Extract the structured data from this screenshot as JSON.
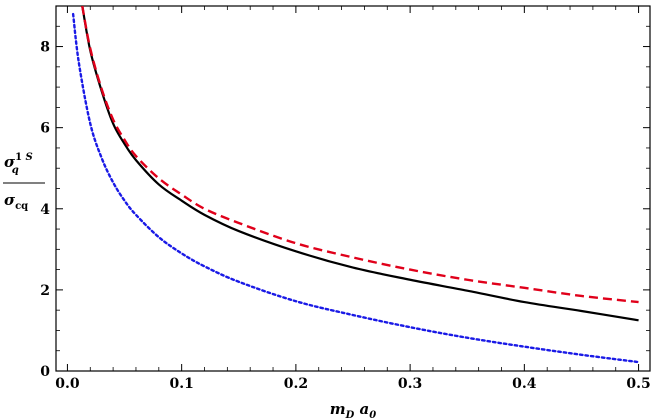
{
  "chart_data": {
    "type": "line",
    "xlabel": "m_D a_0",
    "ylabel_numerator": "σ_q^{1S}",
    "ylabel_denominator": "σ_cq",
    "xlim": [
      -0.01,
      0.51
    ],
    "ylim": [
      0,
      9
    ],
    "x_ticks": [
      "0.0",
      "0.1",
      "0.2",
      "0.3",
      "0.4",
      "0.5"
    ],
    "y_ticks": [
      "0",
      "2",
      "4",
      "6",
      "8"
    ],
    "x_tick_values": [
      0,
      0.1,
      0.2,
      0.3,
      0.4,
      0.5
    ],
    "y_tick_values": [
      0,
      2,
      4,
      6,
      8
    ],
    "grid": false,
    "legend": "none",
    "series": [
      {
        "style": "solid",
        "color": "#000000",
        "x": [
          0.013,
          0.02,
          0.03,
          0.04,
          0.05,
          0.06,
          0.08,
          0.1,
          0.12,
          0.15,
          0.2,
          0.25,
          0.3,
          0.35,
          0.4,
          0.45,
          0.5
        ],
        "y": [
          9.0,
          7.9,
          6.9,
          6.1,
          5.6,
          5.2,
          4.6,
          4.2,
          3.85,
          3.45,
          2.95,
          2.55,
          2.25,
          1.98,
          1.7,
          1.48,
          1.25
        ]
      },
      {
        "style": "dashed",
        "color": "#e0001a",
        "x": [
          0.013,
          0.02,
          0.03,
          0.04,
          0.05,
          0.06,
          0.08,
          0.1,
          0.12,
          0.15,
          0.2,
          0.25,
          0.3,
          0.35,
          0.4,
          0.45,
          0.5
        ],
        "y": [
          9.0,
          7.95,
          6.95,
          6.2,
          5.7,
          5.3,
          4.75,
          4.35,
          4.0,
          3.65,
          3.15,
          2.8,
          2.5,
          2.25,
          2.05,
          1.85,
          1.7
        ]
      },
      {
        "style": "dotted",
        "color": "#1a1ae6",
        "x": [
          0.005,
          0.01,
          0.02,
          0.03,
          0.04,
          0.05,
          0.06,
          0.08,
          0.1,
          0.12,
          0.15,
          0.2,
          0.25,
          0.3,
          0.35,
          0.4,
          0.45,
          0.5
        ],
        "y": [
          8.8,
          7.6,
          6.1,
          5.25,
          4.65,
          4.2,
          3.85,
          3.3,
          2.9,
          2.58,
          2.2,
          1.72,
          1.38,
          1.08,
          0.82,
          0.6,
          0.4,
          0.22
        ]
      }
    ]
  }
}
